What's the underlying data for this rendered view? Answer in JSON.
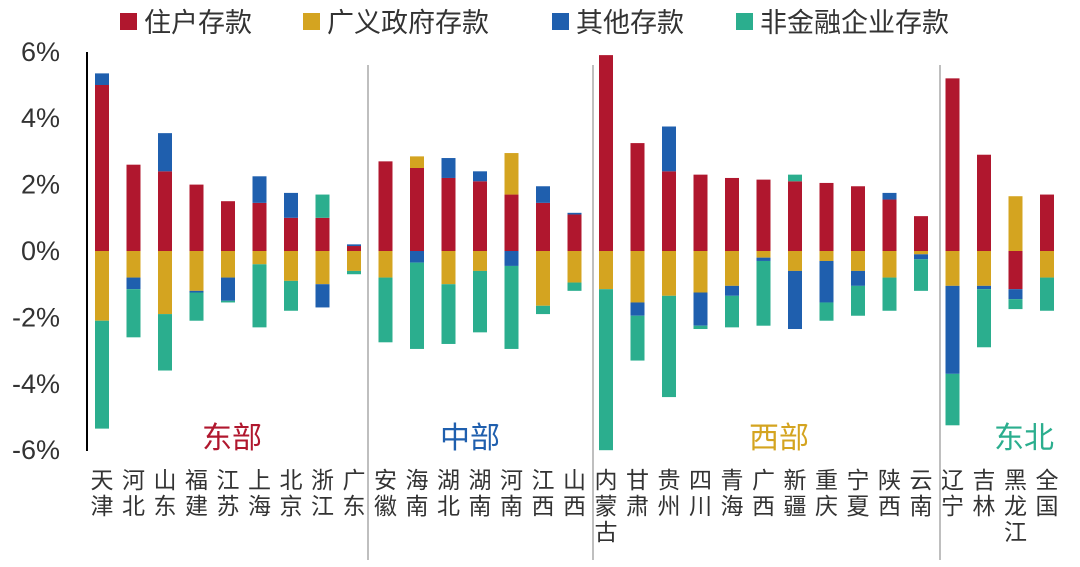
{
  "colors": {
    "household": "#B0172E",
    "gov": "#D4A420",
    "other": "#1F5FAE",
    "corp": "#2BAE8E",
    "axis": "#000000",
    "divider": "#BFBFBF",
    "region_east": "#B0172E",
    "region_central": "#1F5FAE",
    "region_west": "#D4A420",
    "region_northeast": "#2BAE8E"
  },
  "chart_data": {
    "type": "bar",
    "stacked": true,
    "legend": {
      "position": "top",
      "items": [
        "住户存款",
        "广义政府存款",
        "其他存款",
        "非金融企业存款"
      ]
    },
    "y_ticks": [
      "6%",
      "4%",
      "2%",
      "0%",
      "-2%",
      "-4%",
      "-6%"
    ],
    "ylim": [
      -6,
      6
    ],
    "grid": false,
    "regions": [
      "东部",
      "中部",
      "西部",
      "东北"
    ],
    "categories": [
      "天津",
      "河北",
      "山东",
      "福建",
      "江苏",
      "上海",
      "北京",
      "浙江",
      "广东",
      "安徽",
      "海南",
      "湖北",
      "湖南",
      "河南",
      "江西",
      "山西",
      "内蒙古",
      "甘肃",
      "贵州",
      "四川",
      "青海",
      "广西",
      "新疆",
      "重庆",
      "宁夏",
      "陕西",
      "云南",
      "辽宁",
      "吉林",
      "黑龙江",
      "全国"
    ],
    "region_of_category": [
      0,
      0,
      0,
      0,
      0,
      0,
      0,
      0,
      0,
      1,
      1,
      1,
      1,
      1,
      1,
      1,
      2,
      2,
      2,
      2,
      2,
      2,
      2,
      2,
      2,
      2,
      2,
      3,
      3,
      3,
      3
    ],
    "series": [
      {
        "name": "住户存款",
        "key": "household",
        "values": [
          5.0,
          2.6,
          2.4,
          2.0,
          1.5,
          1.45,
          1.0,
          1.0,
          0.15,
          2.7,
          2.5,
          2.2,
          2.1,
          1.7,
          1.45,
          1.1,
          5.9,
          3.25,
          2.4,
          2.3,
          2.2,
          2.15,
          2.1,
          2.05,
          1.95,
          1.55,
          1.05,
          5.2,
          2.9,
          -1.15,
          1.7
        ]
      },
      {
        "name": "广义政府存款",
        "key": "gov",
        "values": [
          -2.1,
          -0.8,
          -1.9,
          -1.2,
          -0.8,
          -0.4,
          -0.9,
          -1.0,
          -0.6,
          -0.8,
          0.35,
          -1.0,
          -0.6,
          1.25,
          -1.65,
          -0.95,
          -1.15,
          -1.55,
          -1.35,
          -1.25,
          -1.05,
          -0.2,
          -0.6,
          -0.3,
          -0.6,
          -0.8,
          -0.1,
          -1.05,
          -1.05,
          1.65,
          -0.8
        ]
      },
      {
        "name": "其他存款",
        "key": "other",
        "values": [
          0.35,
          -0.35,
          1.15,
          -0.05,
          -0.7,
          0.8,
          0.75,
          -0.7,
          0.05,
          0.0,
          -0.35,
          0.6,
          0.3,
          -0.45,
          0.5,
          0.05,
          0.0,
          -0.4,
          1.35,
          -1.0,
          -0.3,
          -0.1,
          -1.75,
          -1.25,
          -0.45,
          0.2,
          -0.15,
          -2.65,
          -0.1,
          -0.3,
          0.0
        ]
      },
      {
        "name": "非金融企业存款",
        "key": "corp",
        "values": [
          -3.25,
          -1.45,
          -1.7,
          -0.85,
          -0.05,
          -1.9,
          -0.9,
          0.7,
          -0.1,
          -1.95,
          -2.6,
          -1.8,
          -1.85,
          -2.5,
          -0.25,
          -0.25,
          -4.85,
          -1.35,
          -3.05,
          -0.1,
          -0.95,
          -1.95,
          0.2,
          -0.55,
          -0.9,
          -1.0,
          -0.95,
          -1.55,
          -1.75,
          -0.3,
          -1.0
        ]
      }
    ]
  }
}
